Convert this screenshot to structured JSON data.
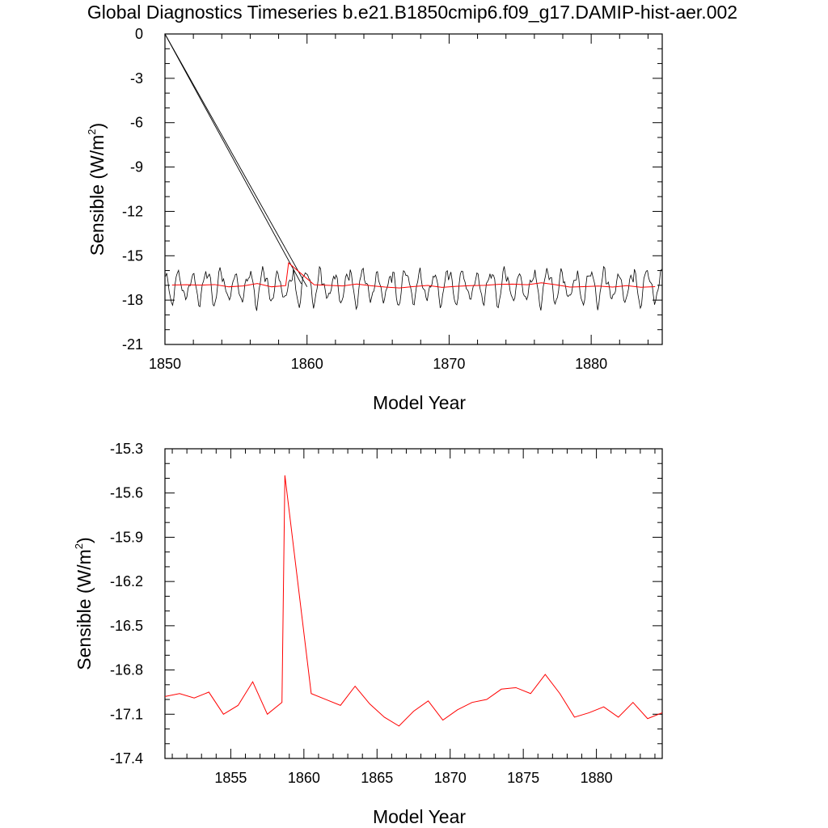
{
  "title": "Global Diagnostics Timeseries b.e21.B1850cmip6.f09_g17.DAMIP-hist-aer.002",
  "colors": {
    "monthly": "#000000",
    "annual": "#ff0000"
  },
  "chart_data": [
    {
      "type": "line",
      "xlabel": "Model Year",
      "ylabel_main": "Sensible (W/m",
      "ylabel_sup": "2",
      "ylabel_close": ")",
      "xlim": [
        1850,
        1885
      ],
      "ylim": [
        -21,
        0
      ],
      "xticks": [
        1850,
        1860,
        1870,
        1880
      ],
      "xtick_labels": [
        "1850",
        "1860",
        "1870",
        "1880"
      ],
      "yticks": [
        0,
        -3,
        -6,
        -9,
        -12,
        -15,
        -18,
        -21
      ],
      "ytick_labels": [
        "0",
        "-3",
        "-6",
        "-9",
        "-12",
        "-15",
        "-18",
        "-21"
      ],
      "series": [
        {
          "kind": "monthly",
          "seasonal_cycle": [
            -16.4,
            -16.6,
            -17.0,
            -17.5,
            -18.0,
            -18.2,
            -17.9,
            -17.4,
            -16.9,
            -16.5,
            -16.2,
            -16.3
          ],
          "spurious_segments": [
            {
              "x": [
                1850.0,
                1859.6
              ],
              "y": [
                0,
                -16.9
              ]
            },
            {
              "x": [
                1850.0,
                1860.0
              ],
              "y": [
                0,
                -17.1
              ]
            }
          ]
        },
        {
          "kind": "annual",
          "x": [
            1850.5,
            1851.5,
            1852.5,
            1853.5,
            1854.5,
            1855.5,
            1856.5,
            1857.5,
            1858.5,
            1858.7,
            1860.5,
            1861.5,
            1862.5,
            1863.5,
            1864.5,
            1865.5,
            1866.5,
            1867.5,
            1868.5,
            1869.5,
            1870.5,
            1871.5,
            1872.5,
            1873.5,
            1874.5,
            1875.5,
            1876.5,
            1877.5,
            1878.5,
            1879.5,
            1880.5,
            1881.5,
            1882.5,
            1883.5,
            1884.5
          ],
          "y": [
            -16.98,
            -16.96,
            -16.99,
            -16.95,
            -17.1,
            -17.04,
            -16.88,
            -17.1,
            -17.02,
            -15.48,
            -16.96,
            -17.0,
            -17.04,
            -16.91,
            -17.03,
            -17.12,
            -17.18,
            -17.08,
            -17.01,
            -17.14,
            -17.07,
            -17.02,
            -17.0,
            -16.93,
            -16.92,
            -16.96,
            -16.83,
            -16.96,
            -17.12,
            -17.09,
            -17.05,
            -17.12,
            -17.02,
            -17.13,
            -17.09
          ]
        }
      ]
    },
    {
      "type": "line",
      "xlabel": "Model Year",
      "ylabel_main": "Sensible (W/m",
      "ylabel_sup": "2",
      "ylabel_close": ")",
      "xlim": [
        1850.5,
        1884.5
      ],
      "ylim": [
        -17.4,
        -15.3
      ],
      "xticks": [
        1855,
        1860,
        1865,
        1870,
        1875,
        1880
      ],
      "xtick_labels": [
        "1855",
        "1860",
        "1865",
        "1870",
        "1875",
        "1880"
      ],
      "yticks": [
        -15.3,
        -15.6,
        -15.9,
        -16.2,
        -16.5,
        -16.8,
        -17.1,
        -17.4
      ],
      "ytick_labels": [
        "-15.3",
        "-15.6",
        "-15.9",
        "-16.2",
        "-16.5",
        "-16.8",
        "-17.1",
        "-17.4"
      ],
      "series": [
        {
          "kind": "annual",
          "x": [
            1850.5,
            1851.5,
            1852.5,
            1853.5,
            1854.5,
            1855.5,
            1856.5,
            1857.5,
            1858.5,
            1858.7,
            1860.5,
            1861.5,
            1862.5,
            1863.5,
            1864.5,
            1865.5,
            1866.5,
            1867.5,
            1868.5,
            1869.5,
            1870.5,
            1871.5,
            1872.5,
            1873.5,
            1874.5,
            1875.5,
            1876.5,
            1877.5,
            1878.5,
            1879.5,
            1880.5,
            1881.5,
            1882.5,
            1883.5,
            1884.5
          ],
          "y": [
            -16.98,
            -16.96,
            -16.99,
            -16.95,
            -17.1,
            -17.04,
            -16.88,
            -17.1,
            -17.02,
            -15.48,
            -16.96,
            -17.0,
            -17.04,
            -16.91,
            -17.03,
            -17.12,
            -17.18,
            -17.08,
            -17.01,
            -17.14,
            -17.07,
            -17.02,
            -17.0,
            -16.93,
            -16.92,
            -16.96,
            -16.83,
            -16.96,
            -17.12,
            -17.09,
            -17.05,
            -17.12,
            -17.02,
            -17.13,
            -17.09
          ]
        }
      ]
    }
  ]
}
